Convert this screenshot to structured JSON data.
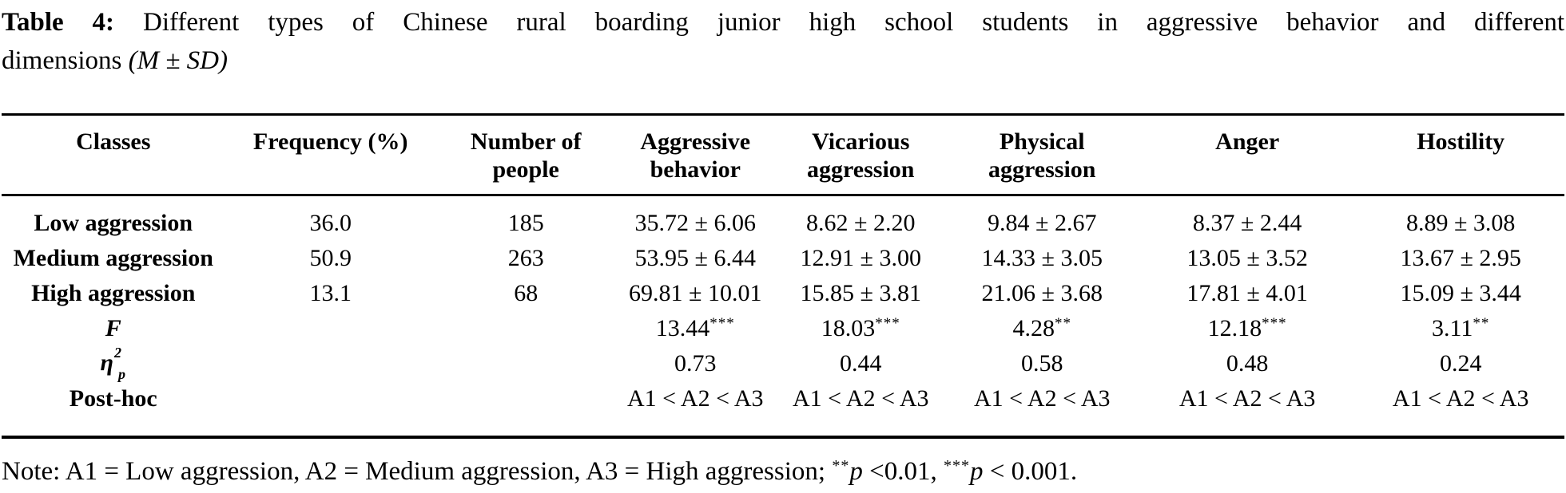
{
  "page": {
    "background_color": "#ffffff",
    "text_color": "#000000"
  },
  "title": {
    "label": "Table 4:",
    "line1": "Different types of Chinese rural boarding junior high school students in aggressive behavior and different",
    "line2": "dimensions",
    "msd": "(M ± SD)"
  },
  "table": {
    "columns": [
      "Classes",
      "Frequency (%)",
      "Number of people",
      "Aggressive behavior",
      "Vicarious aggression",
      "Physical aggression",
      "Anger",
      "Hostility"
    ],
    "column_widths_pct": [
      14.29,
      13.52,
      11.48,
      10.2,
      10.97,
      12.24,
      14.03,
      13.27
    ],
    "rows": [
      {
        "label": "Low aggression",
        "cells": [
          "36.0",
          "185",
          "35.72 ± 6.06",
          "8.62 ± 2.20",
          "9.84 ± 2.67",
          "8.37 ± 2.44",
          "8.89 ± 3.08"
        ]
      },
      {
        "label": "Medium aggression",
        "cells": [
          "50.9",
          "263",
          "53.95 ± 6.44",
          "12.91 ± 3.00",
          "14.33 ± 3.05",
          "13.05 ± 3.52",
          "13.67 ± 2.95"
        ]
      },
      {
        "label": "High aggression",
        "cells": [
          "13.1",
          "68",
          "69.81 ± 10.01",
          "15.85 ± 3.81",
          "21.06 ± 3.68",
          "17.81 ± 4.01",
          "15.09 ± 3.44"
        ]
      },
      {
        "label": "F",
        "label_italic": true,
        "cells": [
          "",
          "",
          "13.44***",
          "18.03***",
          "4.28**",
          "12.18***",
          "3.11**"
        ]
      },
      {
        "label_eta": {
          "base": "η",
          "sup": "2",
          "sub": "p"
        },
        "cells": [
          "",
          "",
          "0.73",
          "0.44",
          "0.58",
          "0.48",
          "0.24"
        ]
      },
      {
        "label": "Post-hoc",
        "cells": [
          "",
          "",
          "A1 < A2 < A3",
          "A1 < A2 < A3",
          "A1 < A2 < A3",
          "A1 < A2 < A3",
          "A1 < A2 < A3"
        ]
      }
    ]
  },
  "note": {
    "segments": [
      {
        "text": "Note: A1 = Low aggression, A2 = Medium aggression, A3 = High aggression; "
      },
      {
        "sup": "**"
      },
      {
        "italic": "p"
      },
      {
        "text": " <0.01, "
      },
      {
        "sup": "***"
      },
      {
        "italic": "p"
      },
      {
        "text": " < 0.001."
      }
    ]
  }
}
